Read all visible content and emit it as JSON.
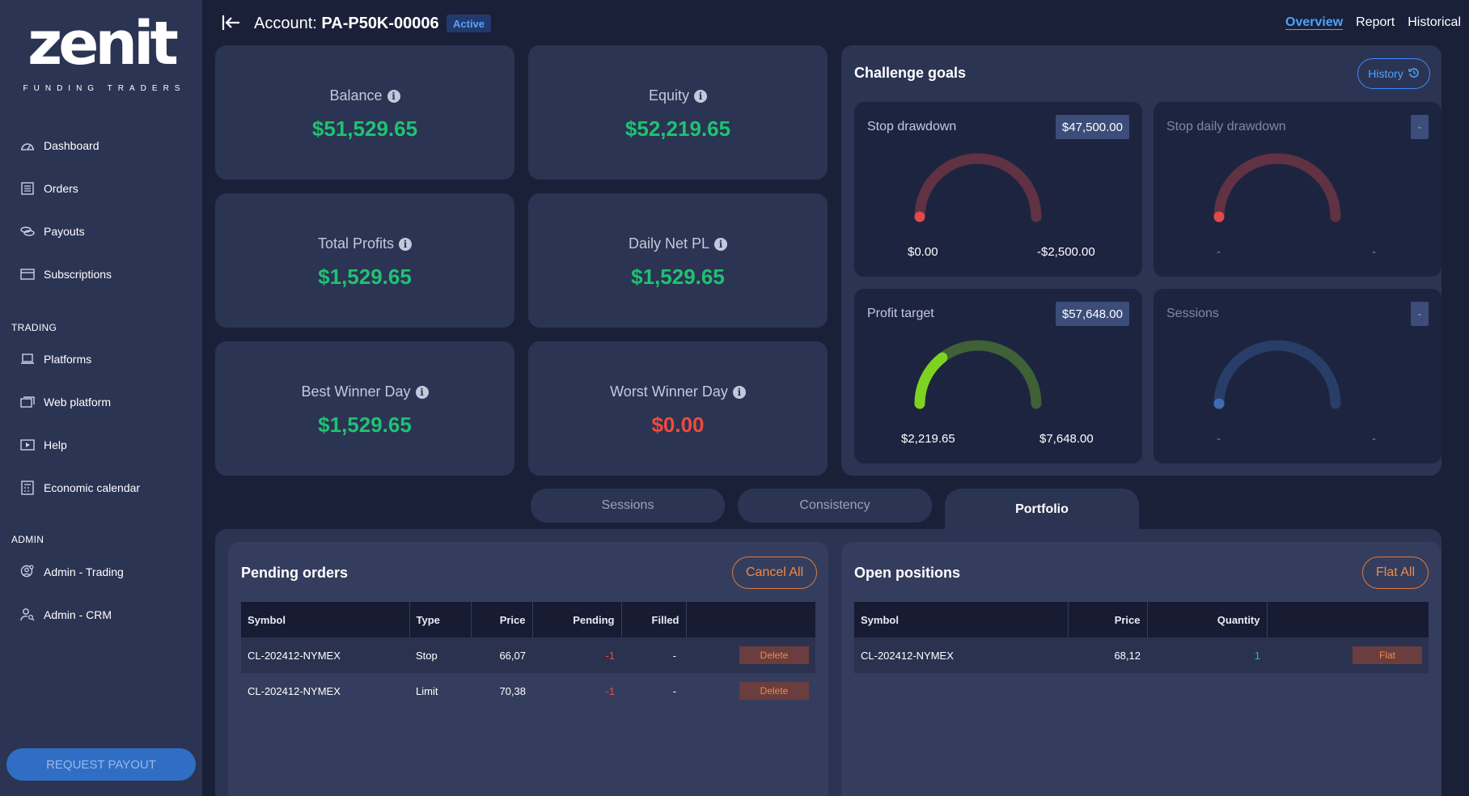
{
  "brand": {
    "name": "zenit",
    "tagline": "FUNDING TRADERS"
  },
  "sidebar": {
    "items": [
      {
        "label": "Dashboard",
        "icon": "gauge-icon"
      },
      {
        "label": "Orders",
        "icon": "list-icon"
      },
      {
        "label": "Payouts",
        "icon": "coins-icon"
      },
      {
        "label": "Subscriptions",
        "icon": "card-icon"
      }
    ],
    "trading_heading": "TRADING",
    "trading_items": [
      {
        "label": "Platforms",
        "icon": "laptop-icon"
      },
      {
        "label": "Web platform",
        "icon": "window-icon"
      },
      {
        "label": "Help",
        "icon": "video-icon"
      },
      {
        "label": "Economic calendar",
        "icon": "calendar-icon"
      }
    ],
    "admin_heading": "ADMIN",
    "admin_items": [
      {
        "label": "Admin - Trading",
        "icon": "user-gear-icon"
      },
      {
        "label": "Admin - CRM",
        "icon": "user-search-icon"
      }
    ],
    "request_payout": "REQUEST PAYOUT"
  },
  "header": {
    "account_prefix": "Account:",
    "account_id": "PA-P50K-00006",
    "status": "Active",
    "tabs": [
      "Overview",
      "Report",
      "Historical"
    ]
  },
  "stats": [
    {
      "label": "Balance",
      "value": "$51,529.65"
    },
    {
      "label": "Equity",
      "value": "$52,219.65"
    },
    {
      "label": "Total Profits",
      "value": "$1,529.65"
    },
    {
      "label": "Daily Net PL",
      "value": "$1,529.65"
    },
    {
      "label": "Best Winner Day",
      "value": "$1,529.65"
    },
    {
      "label": "Worst Winner Day",
      "value": "$0.00"
    }
  ],
  "goals": {
    "title": "Challenge goals",
    "history": "History",
    "gauges": [
      {
        "label": "Stop drawdown",
        "badge": "$47,500.00",
        "left": "$0.00",
        "right": "-$2,500.00",
        "fraction": 0.0,
        "color": "#e04a4a"
      },
      {
        "label": "Stop daily drawdown",
        "badge": "-",
        "left": "-",
        "right": "-",
        "fraction": 0.0,
        "color": "#e04a4a"
      },
      {
        "label": "Profit target",
        "badge": "$57,648.00",
        "left": "$2,219.65",
        "right": "$7,648.00",
        "fraction": 0.29,
        "color": "#7ed321"
      },
      {
        "label": "Sessions",
        "badge": "-",
        "left": "-",
        "right": "-",
        "fraction": 0.0,
        "color": "#3d6cb3"
      }
    ]
  },
  "bottom_tabs": [
    "Sessions",
    "Consistency",
    "Portfolio"
  ],
  "pending": {
    "title": "Pending orders",
    "action": "Cancel All",
    "columns": [
      "Symbol",
      "Type",
      "Price",
      "Pending",
      "Filled",
      ""
    ],
    "rows": [
      {
        "symbol": "CL-202412-NYMEX",
        "type": "Stop",
        "price": "66,07",
        "pending": "-1",
        "filled": "-",
        "action": "Delete"
      },
      {
        "symbol": "CL-202412-NYMEX",
        "type": "Limit",
        "price": "70,38",
        "pending": "-1",
        "filled": "-",
        "action": "Delete"
      }
    ]
  },
  "positions": {
    "title": "Open positions",
    "action": "Flat All",
    "columns": [
      "Symbol",
      "Price",
      "Quantity",
      ""
    ],
    "rows": [
      {
        "symbol": "CL-202412-NYMEX",
        "price": "68,12",
        "quantity": "1",
        "action": "Flat"
      }
    ]
  }
}
